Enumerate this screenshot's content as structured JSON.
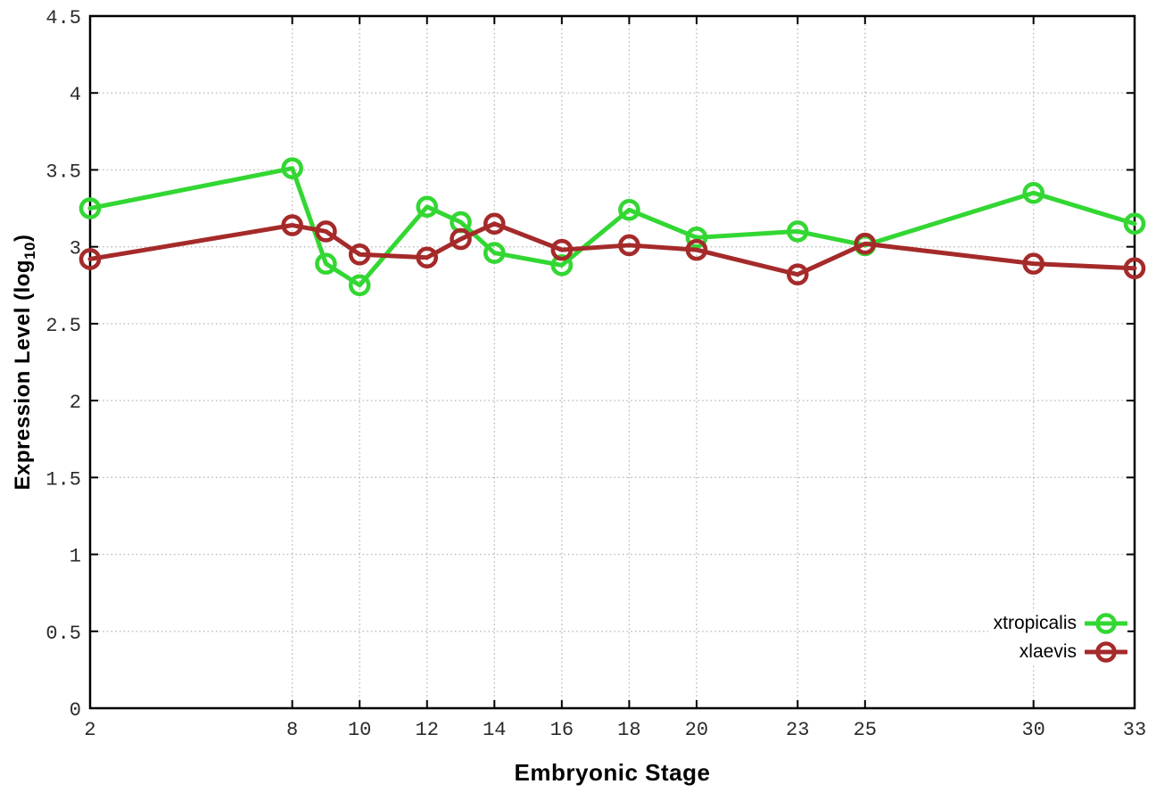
{
  "chart_data": {
    "type": "line",
    "title": "",
    "xlabel": "Embryonic Stage",
    "ylabel": "Expression Level (log10)",
    "ylabel_prefix": "Expression Level (log",
    "ylabel_sub": "10",
    "ylabel_suffix": ")",
    "x": [
      2,
      8,
      9,
      10,
      12,
      13,
      14,
      16,
      18,
      20,
      23,
      25,
      30,
      33
    ],
    "series": [
      {
        "name": "xtropicalis",
        "color": "#33d733",
        "values": [
          3.25,
          3.51,
          2.89,
          2.75,
          3.26,
          3.16,
          2.96,
          2.88,
          3.24,
          3.06,
          3.1,
          3.01,
          3.35,
          3.15
        ]
      },
      {
        "name": "xlaevis",
        "color": "#a52a2a",
        "values": [
          2.92,
          3.14,
          3.1,
          2.95,
          2.93,
          3.05,
          3.15,
          2.98,
          3.01,
          2.98,
          2.82,
          3.02,
          2.89,
          2.86
        ]
      }
    ],
    "xticks": [
      2,
      8,
      10,
      12,
      14,
      16,
      18,
      20,
      23,
      25,
      30,
      33
    ],
    "yticks": [
      0,
      0.5,
      1,
      1.5,
      2,
      2.5,
      3,
      3.5,
      4,
      4.5
    ],
    "xlim": [
      2,
      33
    ],
    "ylim": [
      0,
      4.5
    ],
    "grid": true,
    "grid_style": "dotted",
    "marker": "open-circle",
    "legend_position": "bottom-right",
    "background_color": "#ffffff",
    "axis_color": "#000000",
    "grid_color": "#b9b9b9"
  }
}
